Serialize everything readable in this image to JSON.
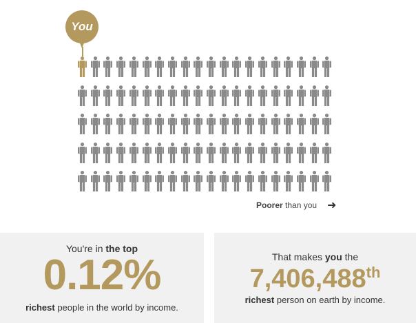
{
  "colors": {
    "accent": "#b3995d",
    "person": "#8a8a8a",
    "card_bg": "#f1f1f1"
  },
  "you_label": "You",
  "grid": {
    "rows": 5,
    "cols": 20,
    "highlight_index": 0
  },
  "poorer": {
    "bold": "Poorer",
    "rest": " than you",
    "arrow_icon": "arrow-right-icon"
  },
  "left_card": {
    "prefix": "You're in ",
    "bold": "the top",
    "value": "0.12%",
    "suffix_bold": "richest",
    "suffix_rest": " people in the world by income."
  },
  "right_card": {
    "prefix": "That makes ",
    "bold": "you",
    "postfix": " the",
    "rank": "7,406,488",
    "ordinal": "th",
    "suffix_bold": "richest",
    "suffix_rest": " person on earth by income."
  }
}
